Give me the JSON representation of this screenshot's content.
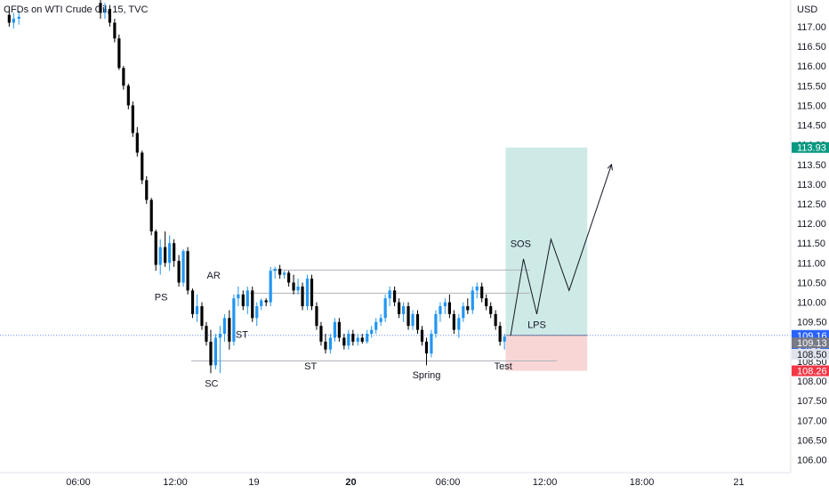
{
  "header": {
    "title": "CFDs on WTI Crude Oil, 15, TVC"
  },
  "chart_data": {
    "type": "candlestick",
    "currency": "USD",
    "ylim": [
      105.9,
      117.45
    ],
    "y_ticks": [
      "106.00",
      "106.50",
      "107.00",
      "107.50",
      "108.00",
      "108.50",
      "109.00",
      "109.50",
      "110.00",
      "110.50",
      "111.00",
      "111.50",
      "112.00",
      "112.50",
      "113.00",
      "113.50",
      "114.00",
      "114.50",
      "115.00",
      "115.50",
      "116.00",
      "116.50",
      "117.00"
    ],
    "x_ticks": [
      {
        "label": "06:00",
        "t": 0
      },
      {
        "label": "12:00",
        "t": 24
      },
      {
        "label": "19",
        "t": 43.5
      },
      {
        "label": "20",
        "t": 67.5
      },
      {
        "label": "06:00",
        "t": 91.5
      },
      {
        "label": "12:00",
        "t": 115.5
      },
      {
        "label": "18:00",
        "t": 139.5
      },
      {
        "label": "21",
        "t": 163.5
      }
    ],
    "candles": [
      {
        "t": -17.1,
        "o": 117.3,
        "h": 117.5,
        "l": 117.0,
        "c": 117.1
      },
      {
        "t": -16.0,
        "o": 117.1,
        "h": 117.35,
        "l": 116.95,
        "c": 117.2
      },
      {
        "t": -14.7,
        "o": 117.2,
        "h": 117.4,
        "l": 117.05,
        "c": 117.25
      },
      {
        "t": 5.5,
        "o": 117.6,
        "h": 117.8,
        "l": 117.2,
        "c": 117.35
      },
      {
        "t": 6.6,
        "o": 117.35,
        "h": 117.6,
        "l": 117.2,
        "c": 117.45
      },
      {
        "t": 7.8,
        "o": 117.45,
        "h": 117.55,
        "l": 117.0,
        "c": 117.1
      },
      {
        "t": 9.0,
        "o": 117.1,
        "h": 117.2,
        "l": 116.6,
        "c": 116.7
      },
      {
        "t": 10.1,
        "o": 116.7,
        "h": 116.8,
        "l": 115.9,
        "c": 115.95
      },
      {
        "t": 11.2,
        "o": 115.95,
        "h": 116.0,
        "l": 115.4,
        "c": 115.5
      },
      {
        "t": 12.4,
        "o": 115.5,
        "h": 115.55,
        "l": 114.9,
        "c": 115.0
      },
      {
        "t": 13.5,
        "o": 115.0,
        "h": 115.1,
        "l": 114.2,
        "c": 114.3
      },
      {
        "t": 14.6,
        "o": 114.3,
        "h": 114.45,
        "l": 113.7,
        "c": 113.8
      },
      {
        "t": 15.8,
        "o": 113.8,
        "h": 113.85,
        "l": 113.0,
        "c": 113.1
      },
      {
        "t": 16.9,
        "o": 113.1,
        "h": 113.2,
        "l": 112.5,
        "c": 112.6
      },
      {
        "t": 18.1,
        "o": 112.6,
        "h": 112.65,
        "l": 111.7,
        "c": 111.8
      },
      {
        "t": 19.2,
        "o": 111.8,
        "h": 111.85,
        "l": 110.8,
        "c": 110.95
      },
      {
        "t": 20.3,
        "o": 110.95,
        "h": 111.6,
        "l": 110.7,
        "c": 111.4
      },
      {
        "t": 21.5,
        "o": 111.4,
        "h": 111.8,
        "l": 110.9,
        "c": 111.0
      },
      {
        "t": 22.6,
        "o": 111.0,
        "h": 111.7,
        "l": 110.8,
        "c": 111.5
      },
      {
        "t": 23.7,
        "o": 111.5,
        "h": 111.6,
        "l": 110.9,
        "c": 111.05
      },
      {
        "t": 24.9,
        "o": 111.05,
        "h": 111.2,
        "l": 110.4,
        "c": 110.5
      },
      {
        "t": 26.0,
        "o": 110.5,
        "h": 111.35,
        "l": 110.4,
        "c": 111.3
      },
      {
        "t": 27.1,
        "o": 111.3,
        "h": 111.4,
        "l": 110.2,
        "c": 110.3
      },
      {
        "t": 28.3,
        "o": 110.3,
        "h": 110.35,
        "l": 109.6,
        "c": 109.7
      },
      {
        "t": 29.4,
        "o": 109.7,
        "h": 110.2,
        "l": 109.5,
        "c": 109.9
      },
      {
        "t": 30.6,
        "o": 109.9,
        "h": 110.0,
        "l": 109.3,
        "c": 109.4
      },
      {
        "t": 31.7,
        "o": 109.4,
        "h": 109.5,
        "l": 108.9,
        "c": 109.0
      },
      {
        "t": 32.8,
        "o": 109.0,
        "h": 109.3,
        "l": 108.2,
        "c": 108.4
      },
      {
        "t": 34.0,
        "o": 108.4,
        "h": 109.2,
        "l": 108.3,
        "c": 109.1
      },
      {
        "t": 35.1,
        "o": 109.1,
        "h": 109.4,
        "l": 108.2,
        "c": 109.2
      },
      {
        "t": 36.2,
        "o": 109.2,
        "h": 109.7,
        "l": 109.0,
        "c": 109.6
      },
      {
        "t": 37.4,
        "o": 109.6,
        "h": 109.8,
        "l": 108.8,
        "c": 109.0
      },
      {
        "t": 38.5,
        "o": 109.0,
        "h": 110.2,
        "l": 108.9,
        "c": 110.1
      },
      {
        "t": 39.6,
        "o": 110.1,
        "h": 110.4,
        "l": 109.9,
        "c": 110.2
      },
      {
        "t": 40.8,
        "o": 110.2,
        "h": 110.3,
        "l": 109.8,
        "c": 109.9
      },
      {
        "t": 41.9,
        "o": 109.9,
        "h": 110.4,
        "l": 109.7,
        "c": 110.3
      },
      {
        "t": 43.1,
        "o": 110.3,
        "h": 110.4,
        "l": 109.5,
        "c": 109.6
      },
      {
        "t": 44.2,
        "o": 109.6,
        "h": 110.0,
        "l": 109.4,
        "c": 109.9
      },
      {
        "t": 45.3,
        "o": 109.9,
        "h": 110.1,
        "l": 109.8,
        "c": 110.05
      },
      {
        "t": 46.5,
        "o": 110.05,
        "h": 110.1,
        "l": 109.9,
        "c": 110.0
      },
      {
        "t": 47.6,
        "o": 110.0,
        "h": 110.9,
        "l": 109.9,
        "c": 110.8
      },
      {
        "t": 48.7,
        "o": 110.8,
        "h": 110.9,
        "l": 110.6,
        "c": 110.85
      },
      {
        "t": 49.9,
        "o": 110.85,
        "h": 110.95,
        "l": 110.6,
        "c": 110.7
      },
      {
        "t": 51.0,
        "o": 110.7,
        "h": 110.8,
        "l": 110.6,
        "c": 110.75
      },
      {
        "t": 52.1,
        "o": 110.75,
        "h": 110.8,
        "l": 110.4,
        "c": 110.5
      },
      {
        "t": 53.3,
        "o": 110.5,
        "h": 110.7,
        "l": 110.2,
        "c": 110.3
      },
      {
        "t": 54.4,
        "o": 110.3,
        "h": 110.6,
        "l": 110.2,
        "c": 110.4
      },
      {
        "t": 55.5,
        "o": 110.4,
        "h": 110.5,
        "l": 109.8,
        "c": 109.9
      },
      {
        "t": 56.7,
        "o": 109.9,
        "h": 110.7,
        "l": 109.8,
        "c": 110.6
      },
      {
        "t": 57.8,
        "o": 110.6,
        "h": 110.7,
        "l": 109.8,
        "c": 109.9
      },
      {
        "t": 59.0,
        "o": 109.9,
        "h": 110.0,
        "l": 109.3,
        "c": 109.4
      },
      {
        "t": 60.1,
        "o": 109.4,
        "h": 109.5,
        "l": 108.9,
        "c": 109.0
      },
      {
        "t": 61.2,
        "o": 109.0,
        "h": 109.2,
        "l": 108.7,
        "c": 108.8
      },
      {
        "t": 62.4,
        "o": 108.8,
        "h": 109.2,
        "l": 108.7,
        "c": 109.1
      },
      {
        "t": 63.5,
        "o": 109.1,
        "h": 109.6,
        "l": 109.0,
        "c": 109.5
      },
      {
        "t": 64.6,
        "o": 109.5,
        "h": 109.6,
        "l": 109.0,
        "c": 109.1
      },
      {
        "t": 65.8,
        "o": 109.1,
        "h": 109.2,
        "l": 108.8,
        "c": 108.9
      },
      {
        "t": 66.9,
        "o": 108.9,
        "h": 109.3,
        "l": 108.8,
        "c": 109.2
      },
      {
        "t": 68.0,
        "o": 109.2,
        "h": 109.3,
        "l": 108.9,
        "c": 109.0
      },
      {
        "t": 69.2,
        "o": 109.0,
        "h": 109.2,
        "l": 108.9,
        "c": 109.1
      },
      {
        "t": 70.3,
        "o": 109.1,
        "h": 109.2,
        "l": 108.95,
        "c": 109.0
      },
      {
        "t": 71.5,
        "o": 109.0,
        "h": 109.3,
        "l": 108.95,
        "c": 109.2
      },
      {
        "t": 72.6,
        "o": 109.2,
        "h": 109.4,
        "l": 109.1,
        "c": 109.3
      },
      {
        "t": 73.7,
        "o": 109.3,
        "h": 109.6,
        "l": 109.2,
        "c": 109.5
      },
      {
        "t": 74.9,
        "o": 109.5,
        "h": 109.7,
        "l": 109.4,
        "c": 109.6
      },
      {
        "t": 76.0,
        "o": 109.6,
        "h": 110.2,
        "l": 109.5,
        "c": 110.1
      },
      {
        "t": 77.1,
        "o": 110.1,
        "h": 110.4,
        "l": 109.9,
        "c": 110.3
      },
      {
        "t": 78.3,
        "o": 110.3,
        "h": 110.4,
        "l": 109.9,
        "c": 110.0
      },
      {
        "t": 79.4,
        "o": 110.0,
        "h": 110.1,
        "l": 109.6,
        "c": 109.7
      },
      {
        "t": 80.5,
        "o": 109.7,
        "h": 110.0,
        "l": 109.5,
        "c": 109.9
      },
      {
        "t": 81.7,
        "o": 109.9,
        "h": 110.0,
        "l": 109.3,
        "c": 109.4
      },
      {
        "t": 82.8,
        "o": 109.4,
        "h": 109.8,
        "l": 109.3,
        "c": 109.7
      },
      {
        "t": 84.0,
        "o": 109.7,
        "h": 109.8,
        "l": 109.2,
        "c": 109.3
      },
      {
        "t": 85.1,
        "o": 109.3,
        "h": 109.4,
        "l": 108.9,
        "c": 109.0
      },
      {
        "t": 86.2,
        "o": 109.0,
        "h": 109.1,
        "l": 108.4,
        "c": 108.7
      },
      {
        "t": 87.4,
        "o": 108.7,
        "h": 109.3,
        "l": 108.6,
        "c": 109.2
      },
      {
        "t": 88.5,
        "o": 109.2,
        "h": 109.8,
        "l": 109.1,
        "c": 109.7
      },
      {
        "t": 89.6,
        "o": 109.7,
        "h": 110.0,
        "l": 109.5,
        "c": 109.9
      },
      {
        "t": 90.8,
        "o": 109.9,
        "h": 110.1,
        "l": 109.7,
        "c": 110.0
      },
      {
        "t": 91.9,
        "o": 110.0,
        "h": 110.2,
        "l": 109.6,
        "c": 109.7
      },
      {
        "t": 93.0,
        "o": 109.7,
        "h": 109.8,
        "l": 109.2,
        "c": 109.3
      },
      {
        "t": 94.2,
        "o": 109.3,
        "h": 109.7,
        "l": 109.1,
        "c": 109.6
      },
      {
        "t": 95.3,
        "o": 109.6,
        "h": 110.0,
        "l": 109.5,
        "c": 109.9
      },
      {
        "t": 96.4,
        "o": 109.9,
        "h": 110.1,
        "l": 109.7,
        "c": 109.8
      },
      {
        "t": 97.6,
        "o": 109.8,
        "h": 110.4,
        "l": 109.7,
        "c": 110.3
      },
      {
        "t": 98.7,
        "o": 110.3,
        "h": 110.5,
        "l": 110.1,
        "c": 110.4
      },
      {
        "t": 99.9,
        "o": 110.4,
        "h": 110.5,
        "l": 110.0,
        "c": 110.1
      },
      {
        "t": 101.0,
        "o": 110.1,
        "h": 110.2,
        "l": 109.8,
        "c": 109.9
      },
      {
        "t": 102.1,
        "o": 109.9,
        "h": 110.0,
        "l": 109.6,
        "c": 109.7
      },
      {
        "t": 103.3,
        "o": 109.7,
        "h": 109.8,
        "l": 109.3,
        "c": 109.4
      },
      {
        "t": 104.4,
        "o": 109.4,
        "h": 109.5,
        "l": 108.9,
        "c": 109.0
      },
      {
        "t": 105.5,
        "o": 109.0,
        "h": 109.2,
        "l": 108.8,
        "c": 109.13
      }
    ],
    "levels": [
      {
        "name": "upper-range-line",
        "y": 110.82,
        "t0": 48.0,
        "t1": 111.8
      },
      {
        "name": "ar-line",
        "y": 110.23,
        "t0": 42.5,
        "t1": 111.8
      },
      {
        "name": "lower-range-line",
        "y": 108.51,
        "t0": 28.0,
        "t1": 118.5
      }
    ],
    "position": {
      "t0": 105.8,
      "t1": 126.0,
      "entry": 109.16,
      "target": 113.93,
      "stop": 108.26,
      "profit_color": "#cdeae7",
      "loss_color": "#f9d6d6"
    },
    "projection": [
      {
        "t": 107.0,
        "v": 109.15
      },
      {
        "t": 110.2,
        "v": 111.1
      },
      {
        "t": 113.5,
        "v": 109.7
      },
      {
        "t": 117.0,
        "v": 111.6
      },
      {
        "t": 121.5,
        "v": 110.3
      },
      {
        "t": 132.0,
        "v": 113.5
      }
    ],
    "annotations": [
      {
        "id": "ps",
        "label": "PS",
        "t": 20.5,
        "v": 110.05
      },
      {
        "id": "ar",
        "label": "AR",
        "t": 33.5,
        "v": 110.6
      },
      {
        "id": "st1",
        "label": "ST",
        "t": 40.5,
        "v": 109.1
      },
      {
        "id": "sc",
        "label": "SC",
        "t": 33.0,
        "v": 107.85
      },
      {
        "id": "st2",
        "label": "ST",
        "t": 57.5,
        "v": 108.3
      },
      {
        "id": "spring",
        "label": "Spring",
        "t": 86.2,
        "v": 108.07
      },
      {
        "id": "test",
        "label": "Test",
        "t": 105.2,
        "v": 108.3
      },
      {
        "id": "sos",
        "label": "SOS",
        "t": 109.5,
        "v": 111.4
      },
      {
        "id": "lps",
        "label": "LPS",
        "t": 113.5,
        "v": 109.35
      }
    ],
    "price_labels": [
      {
        "id": "target",
        "text": "113.93",
        "v": 113.93,
        "bg": "#089981"
      },
      {
        "id": "last",
        "text": "109.16",
        "sub": "04:13",
        "v": 109.16,
        "bg": "#2962ff"
      },
      {
        "id": "entry",
        "text": "109.13",
        "v": 108.97,
        "bg": "#787b86"
      },
      {
        "id": "mid",
        "text": "108.50",
        "v": 108.68,
        "bg": "#e0e3eb",
        "fg": "#131722"
      },
      {
        "id": "stop",
        "text": "108.26",
        "v": 108.26,
        "bg": "#f23645"
      }
    ],
    "colors": {
      "up": "#2196f3",
      "down": "#000000",
      "grid_line": "#b0b3bb",
      "current_price_line": "#2962ff"
    }
  }
}
